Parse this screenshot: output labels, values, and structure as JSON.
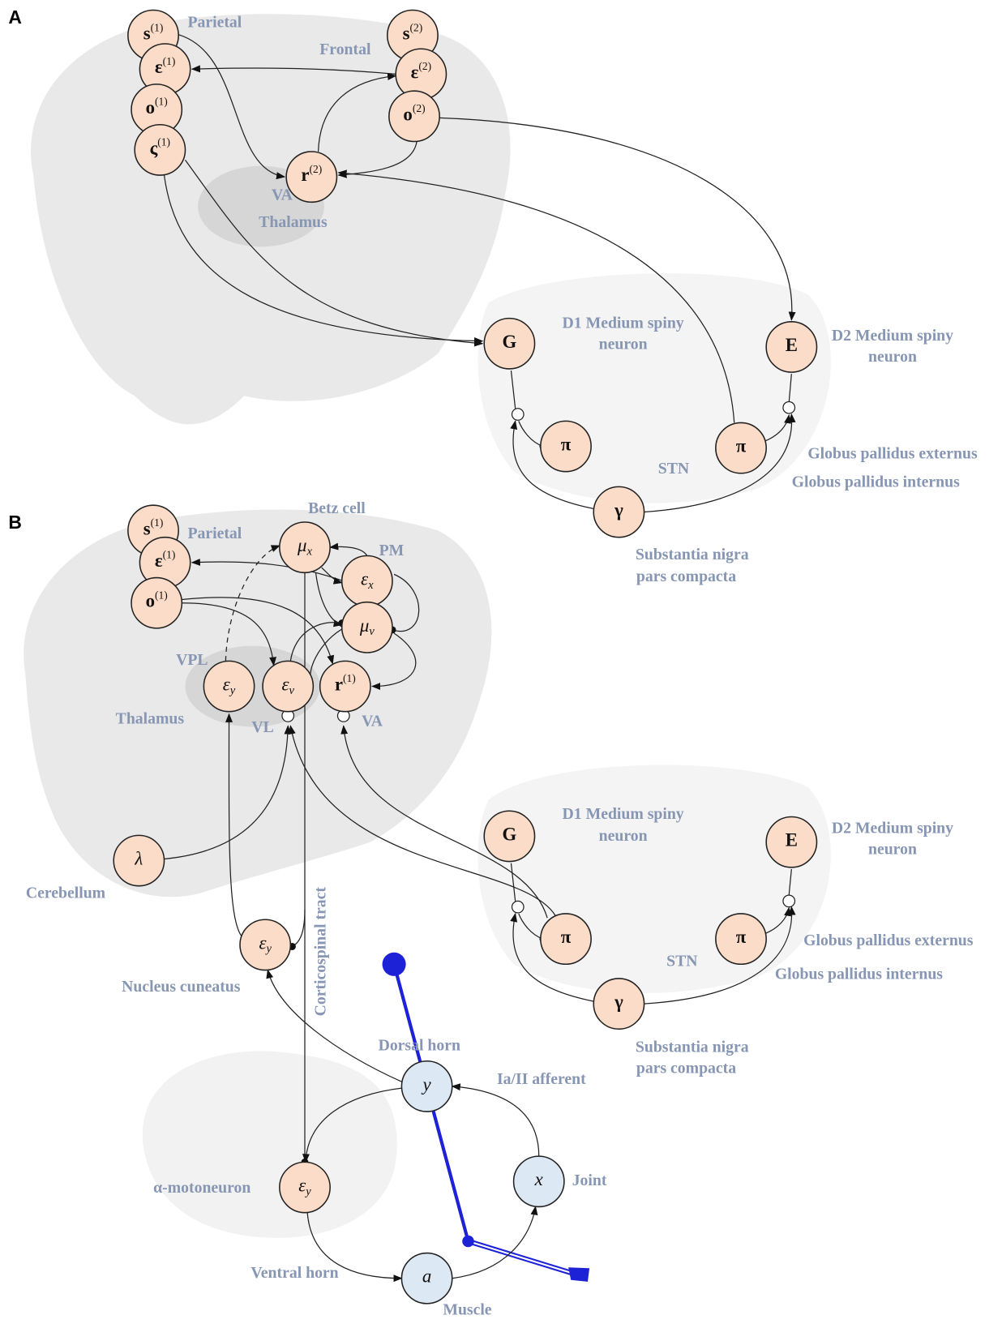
{
  "panels": [
    {
      "letter": "A",
      "nodes": [
        {
          "label": "s",
          "superscript": "(1)"
        },
        {
          "label": "ε",
          "superscript": "(1)"
        },
        {
          "label": "o",
          "superscript": "(1)"
        },
        {
          "label": "ς",
          "superscript": "(1)"
        },
        {
          "label": "s",
          "superscript": "(2)"
        },
        {
          "label": "ε",
          "superscript": "(2)"
        },
        {
          "label": "o",
          "superscript": "(2)"
        },
        {
          "label": "r",
          "superscript": "(2)"
        },
        {
          "label": "G"
        },
        {
          "label": "E"
        },
        {
          "label": "π"
        },
        {
          "label": "π"
        },
        {
          "label": "γ"
        }
      ],
      "regions": [
        "Parietal",
        "Frontal",
        "VA",
        "Thalamus",
        "D1 Medium spiny",
        "neuron",
        "D2 Medium spiny",
        "neuron",
        "STN",
        "Globus pallidus externus",
        "Globus pallidus internus",
        "Substantia nigra",
        "pars compacta"
      ]
    },
    {
      "letter": "B",
      "nodes": [
        {
          "label": "s",
          "superscript": "(1)"
        },
        {
          "label": "ε",
          "superscript": "(1)"
        },
        {
          "label": "o",
          "superscript": "(1)"
        },
        {
          "label": "μ",
          "subscript": "x"
        },
        {
          "label": "ε",
          "subscript": "x"
        },
        {
          "label": "μ",
          "subscript": "v"
        },
        {
          "label": "ε",
          "subscript": "y"
        },
        {
          "label": "ε",
          "subscript": "v"
        },
        {
          "label": "r",
          "superscript": "(1)"
        },
        {
          "label": "λ"
        },
        {
          "label": "G"
        },
        {
          "label": "E"
        },
        {
          "label": "π"
        },
        {
          "label": "π"
        },
        {
          "label": "γ"
        },
        {
          "label": "ε",
          "subscript": "y"
        },
        {
          "label": "y"
        },
        {
          "label": "x"
        },
        {
          "label": "ε",
          "subscript": "y"
        },
        {
          "label": "a"
        }
      ],
      "regions": [
        "Betz cell",
        "Parietal",
        "PM",
        "VPL",
        "Thalamus",
        "VL",
        "VA",
        "Cerebellum",
        "Nucleus cuneatus",
        "Corticospinal tract",
        "D1 Medium spiny",
        "neuron",
        "D2 Medium spiny",
        "neuron",
        "STN",
        "Globus pallidus externus",
        "Globus pallidus internus",
        "Substantia nigra",
        "pars compacta",
        "Dorsal horn",
        "Ia/II afferent",
        "Joint",
        "α-motoneuron",
        "Ventral horn",
        "Muscle"
      ]
    }
  ]
}
